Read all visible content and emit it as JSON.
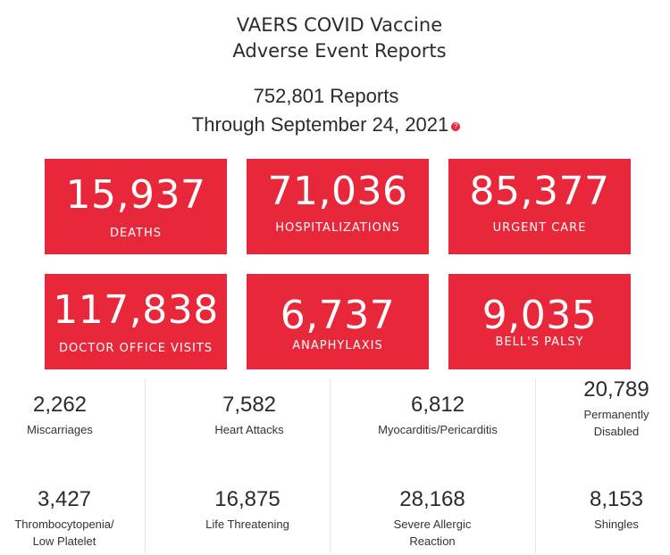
{
  "header": {
    "title_line1": "VAERS COVID Vaccine",
    "title_line2": "Adverse Event Reports",
    "reports": "752,801 Reports",
    "through": "Through September 24, 2021",
    "help_glyph": "?"
  },
  "colors": {
    "accent": "#e8283a",
    "divider": "#e6e6e6"
  },
  "boxes": [
    {
      "value": "15,937",
      "label": "DEATHS"
    },
    {
      "value": "71,036",
      "label": "HOSPITALIZATIONS"
    },
    {
      "value": "85,377",
      "label": "URGENT CARE"
    },
    {
      "value": "117,838",
      "label": "DOCTOR OFFICE VISITS"
    },
    {
      "value": "6,737",
      "label": "ANAPHYLAXIS"
    },
    {
      "value": "9,035",
      "label": "BELL'S PALSY"
    }
  ],
  "stats": [
    {
      "value": "2,262",
      "label1": "Miscarriages",
      "label2": ""
    },
    {
      "value": "7,582",
      "label1": "Heart Attacks",
      "label2": ""
    },
    {
      "value": "6,812",
      "label1": "Myocarditis/Pericarditis",
      "label2": ""
    },
    {
      "value": "20,789",
      "label1": "Permanently",
      "label2": "Disabled"
    },
    {
      "value": "3,427",
      "label1": "Thrombocytopenia/",
      "label2": "Low Platelet"
    },
    {
      "value": "16,875",
      "label1": "Life Threatening",
      "label2": ""
    },
    {
      "value": "28,168",
      "label1": "Severe Allergic",
      "label2": "Reaction"
    },
    {
      "value": "8,153",
      "label1": "Shingles",
      "label2": ""
    }
  ]
}
